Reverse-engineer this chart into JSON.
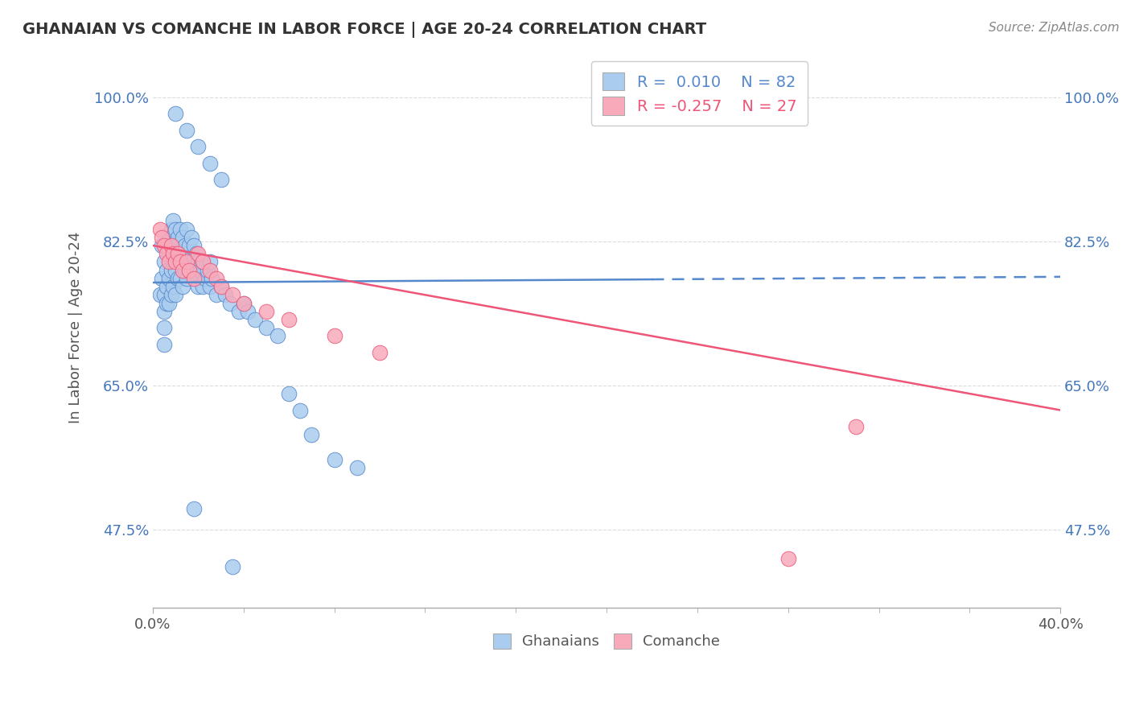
{
  "title": "GHANAIAN VS COMANCHE IN LABOR FORCE | AGE 20-24 CORRELATION CHART",
  "source": "Source: ZipAtlas.com",
  "ylabel": "In Labor Force | Age 20-24",
  "xlim": [
    0.0,
    0.4
  ],
  "ylim": [
    0.38,
    1.06
  ],
  "yticks": [
    0.475,
    0.65,
    0.825,
    1.0
  ],
  "ytick_labels": [
    "47.5%",
    "65.0%",
    "82.5%",
    "100.0%"
  ],
  "xtick_labels": [
    "0.0%",
    "40.0%"
  ],
  "xticks": [
    0.0,
    0.4
  ],
  "ghanaian_color": "#aaccee",
  "comanche_color": "#f8aabb",
  "trendline_ghanaian_color": "#5588cc",
  "trendline_comanche_color": "#ee5577",
  "R_ghanaian": 0.01,
  "N_ghanaian": 82,
  "R_comanche": -0.257,
  "N_comanche": 27,
  "ghanaian_points_x": [
    0.003,
    0.004,
    0.004,
    0.005,
    0.005,
    0.005,
    0.005,
    0.005,
    0.006,
    0.006,
    0.006,
    0.006,
    0.007,
    0.007,
    0.007,
    0.007,
    0.008,
    0.008,
    0.008,
    0.008,
    0.009,
    0.009,
    0.009,
    0.009,
    0.01,
    0.01,
    0.01,
    0.01,
    0.011,
    0.011,
    0.011,
    0.012,
    0.012,
    0.012,
    0.013,
    0.013,
    0.013,
    0.014,
    0.014,
    0.015,
    0.015,
    0.015,
    0.016,
    0.016,
    0.017,
    0.017,
    0.018,
    0.018,
    0.019,
    0.019,
    0.02,
    0.02,
    0.021,
    0.022,
    0.022,
    0.023,
    0.024,
    0.025,
    0.025,
    0.026,
    0.028,
    0.03,
    0.032,
    0.034,
    0.038,
    0.04,
    0.042,
    0.045,
    0.05,
    0.055,
    0.06,
    0.065,
    0.07,
    0.08,
    0.09,
    0.01,
    0.015,
    0.02,
    0.025,
    0.03,
    0.018,
    0.035
  ],
  "ghanaian_points_y": [
    0.76,
    0.82,
    0.78,
    0.8,
    0.76,
    0.74,
    0.72,
    0.7,
    0.82,
    0.79,
    0.77,
    0.75,
    0.83,
    0.81,
    0.78,
    0.75,
    0.84,
    0.82,
    0.79,
    0.76,
    0.85,
    0.82,
    0.8,
    0.77,
    0.84,
    0.82,
    0.79,
    0.76,
    0.83,
    0.81,
    0.78,
    0.84,
    0.81,
    0.78,
    0.83,
    0.8,
    0.77,
    0.82,
    0.79,
    0.84,
    0.81,
    0.78,
    0.82,
    0.79,
    0.83,
    0.8,
    0.82,
    0.79,
    0.81,
    0.78,
    0.8,
    0.77,
    0.79,
    0.8,
    0.77,
    0.78,
    0.79,
    0.8,
    0.77,
    0.78,
    0.76,
    0.77,
    0.76,
    0.75,
    0.74,
    0.75,
    0.74,
    0.73,
    0.72,
    0.71,
    0.64,
    0.62,
    0.59,
    0.56,
    0.55,
    0.98,
    0.96,
    0.94,
    0.92,
    0.9,
    0.5,
    0.43
  ],
  "comanche_points_x": [
    0.003,
    0.004,
    0.005,
    0.006,
    0.007,
    0.008,
    0.009,
    0.01,
    0.011,
    0.012,
    0.013,
    0.015,
    0.016,
    0.018,
    0.02,
    0.022,
    0.025,
    0.028,
    0.03,
    0.035,
    0.04,
    0.05,
    0.06,
    0.08,
    0.1,
    0.28,
    0.31
  ],
  "comanche_points_y": [
    0.84,
    0.83,
    0.82,
    0.81,
    0.8,
    0.82,
    0.81,
    0.8,
    0.81,
    0.8,
    0.79,
    0.8,
    0.79,
    0.78,
    0.81,
    0.8,
    0.79,
    0.78,
    0.77,
    0.76,
    0.75,
    0.74,
    0.73,
    0.71,
    0.69,
    0.44,
    0.6
  ],
  "background_color": "#ffffff",
  "grid_color": "#cccccc"
}
